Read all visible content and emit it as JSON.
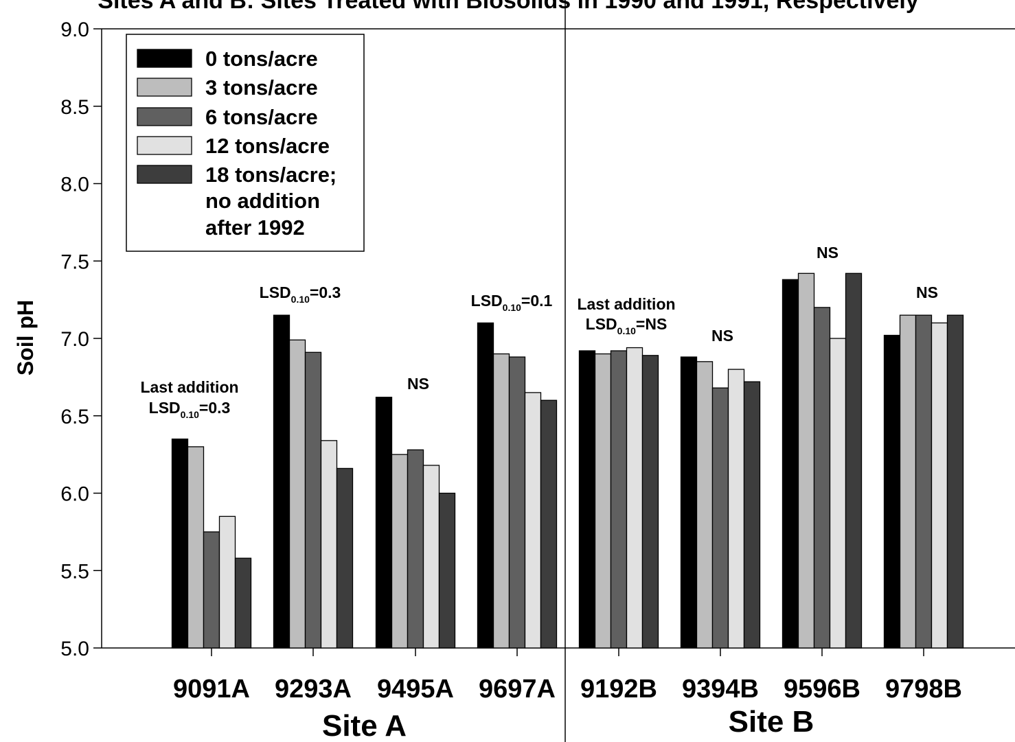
{
  "chart_data": {
    "type": "bar",
    "title": "",
    "top_cropped_title": "Sites A and B: Sites Treated with Biosolids in 1990 and 1991, Respectively",
    "ylabel": "Soil pH",
    "ylim": [
      5.0,
      9.0
    ],
    "yticks": [
      "5.0",
      "5.5",
      "6.0",
      "6.5",
      "7.0",
      "7.5",
      "8.0",
      "8.5",
      "9.0"
    ],
    "categories": [
      "9091A",
      "9293A",
      "9495A",
      "9697A",
      "9192B",
      "9394B",
      "9596B",
      "9798B"
    ],
    "groups": [
      {
        "label": "Site A",
        "categories": [
          "9091A",
          "9293A",
          "9495A",
          "9697A"
        ]
      },
      {
        "label": "Site B",
        "categories": [
          "9192B",
          "9394B",
          "9596B",
          "9798B"
        ]
      }
    ],
    "series": [
      {
        "name": "0 tons/acre",
        "color": "#000000",
        "values": [
          6.35,
          7.15,
          6.62,
          7.1,
          6.92,
          6.88,
          7.38,
          7.02
        ]
      },
      {
        "name": "3 tons/acre",
        "color": "#bdbdbd",
        "values": [
          6.3,
          6.99,
          6.25,
          6.9,
          6.9,
          6.85,
          7.42,
          7.15
        ]
      },
      {
        "name": "6 tons/acre",
        "color": "#606060",
        "values": [
          5.75,
          6.91,
          6.28,
          6.88,
          6.92,
          6.68,
          7.2,
          7.15
        ]
      },
      {
        "name": "12 tons/acre",
        "color": "#e1e1e1",
        "values": [
          5.85,
          6.34,
          6.18,
          6.65,
          6.94,
          6.8,
          7.0,
          7.1
        ]
      },
      {
        "name": "18 tons/acre; no addition after 1992",
        "color": "#3d3d3d",
        "values": [
          5.58,
          6.16,
          6.0,
          6.6,
          6.89,
          6.72,
          7.42,
          7.15
        ]
      }
    ],
    "annotations": [
      {
        "category": "9091A",
        "lines": [
          "Last addition",
          "LSD|0.10|=0.3"
        ]
      },
      {
        "category": "9293A",
        "lines": [
          "LSD|0.10|=0.3"
        ]
      },
      {
        "category": "9495A",
        "lines": [
          "NS"
        ]
      },
      {
        "category": "9697A",
        "lines": [
          "LSD|0.10|=0.1"
        ]
      },
      {
        "category": "9192B",
        "lines": [
          "Last addition",
          "LSD|0.10|=NS"
        ]
      },
      {
        "category": "9394B",
        "lines": [
          "NS"
        ]
      },
      {
        "category": "9596B",
        "lines": [
          "NS"
        ]
      },
      {
        "category": "9798B",
        "lines": [
          "NS"
        ]
      }
    ],
    "legend": {
      "position": "top-left",
      "entries": [
        "0 tons/acre",
        "3 tons/acre",
        "6 tons/acre",
        "12 tons/acre",
        "18 tons/acre;",
        "no addition",
        "after 1992"
      ]
    },
    "grid": false
  }
}
